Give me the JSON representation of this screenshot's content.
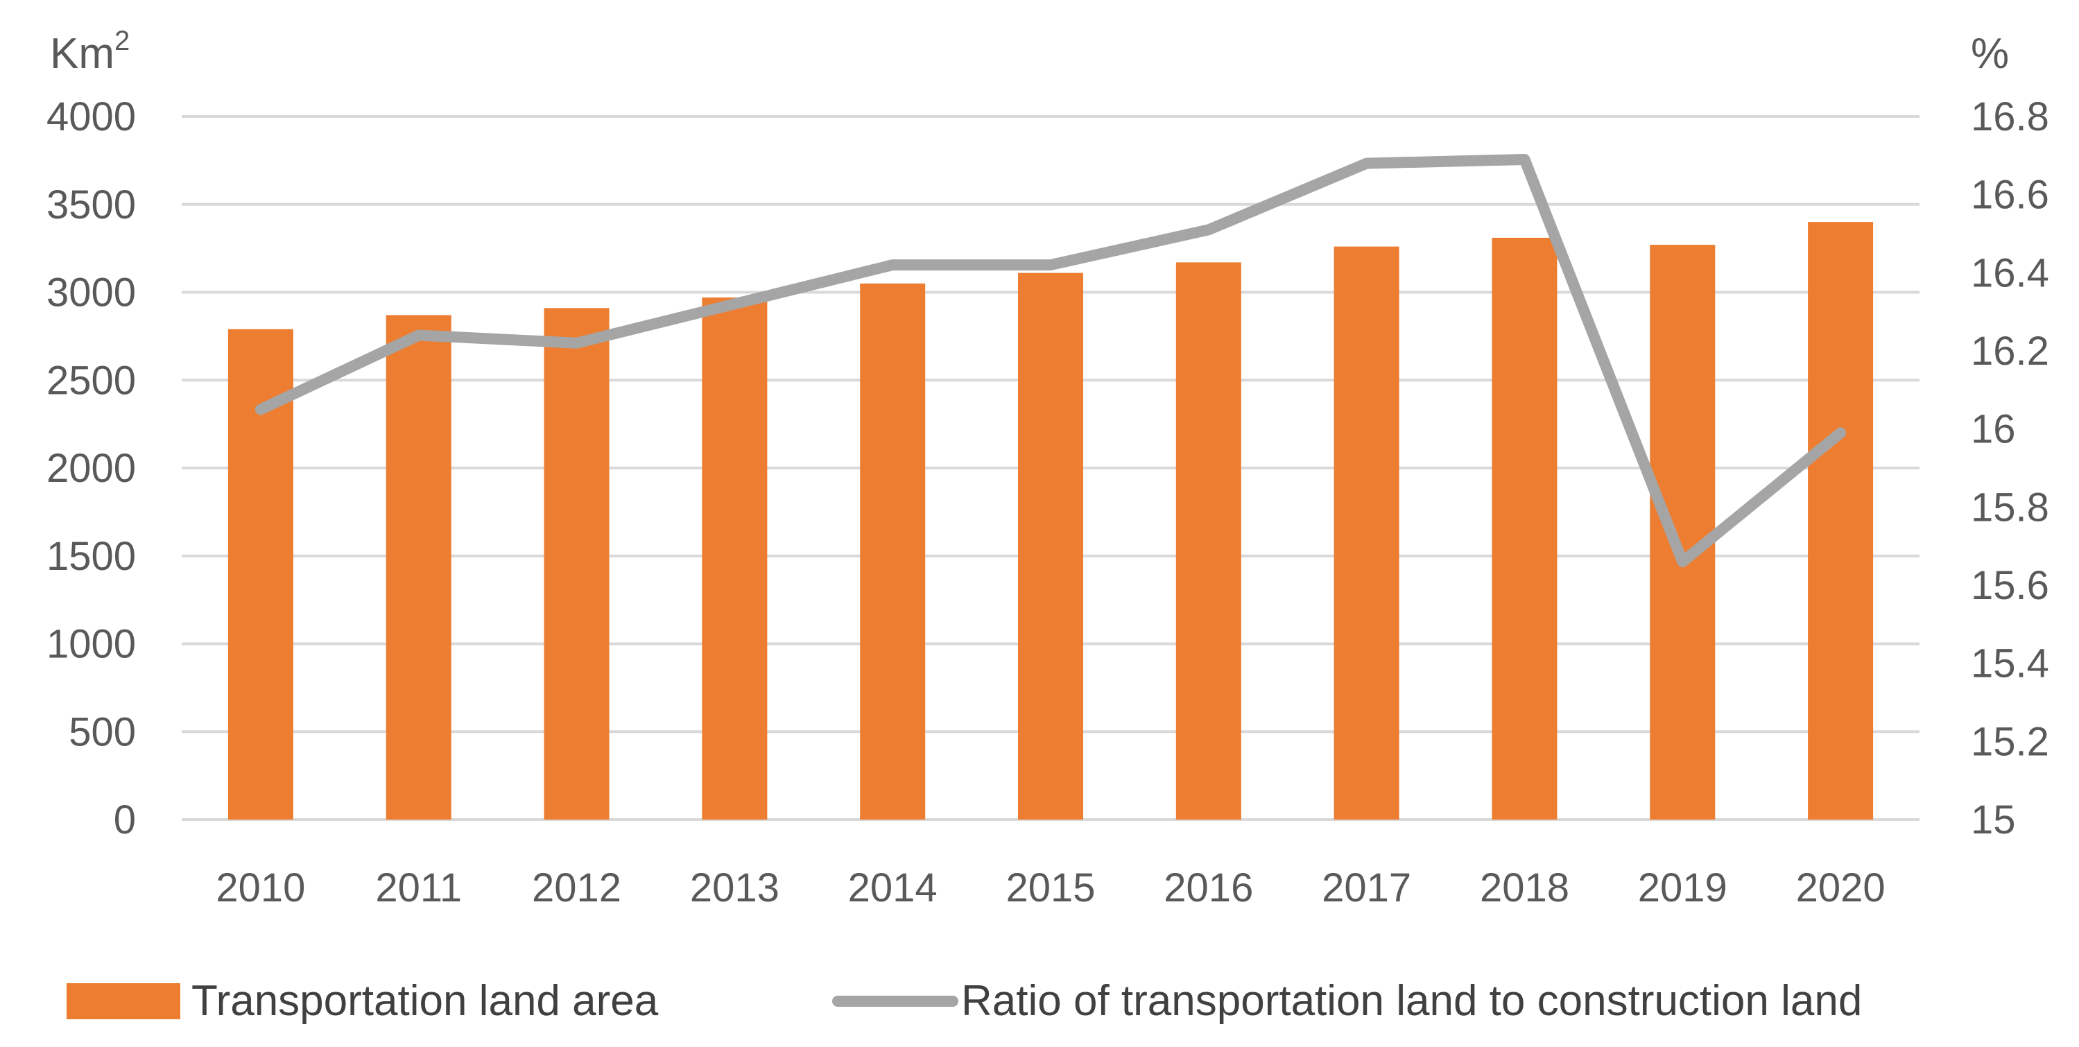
{
  "chart_data": {
    "type": "bar+line",
    "categories": [
      "2010",
      "2011",
      "2012",
      "2013",
      "2014",
      "2015",
      "2016",
      "2017",
      "2018",
      "2019",
      "2020"
    ],
    "series": [
      {
        "name": "Transportation land area",
        "type": "bar",
        "axis": "left",
        "color": "#ED7D31",
        "values": [
          2790,
          2870,
          2910,
          2970,
          3050,
          3110,
          3170,
          3260,
          3310,
          3270,
          3400
        ]
      },
      {
        "name": "Ratio of transportation land to construction land",
        "type": "line",
        "axis": "right",
        "color": "#A5A5A5",
        "values": [
          16.05,
          16.24,
          16.22,
          16.32,
          16.42,
          16.42,
          16.51,
          16.68,
          16.69,
          15.66,
          15.99
        ]
      }
    ],
    "left_axis": {
      "label_base": "Km",
      "label_sup": "2",
      "min": 0,
      "max": 4000,
      "step": 500,
      "ticks": [
        "0",
        "500",
        "1000",
        "1500",
        "2000",
        "2500",
        "3000",
        "3500",
        "4000"
      ]
    },
    "right_axis": {
      "label": "%",
      "min": 15,
      "max": 16.8,
      "step": 0.2,
      "ticks": [
        "15",
        "15.2",
        "15.4",
        "15.6",
        "15.8",
        "16",
        "16.2",
        "16.4",
        "16.6",
        "16.8"
      ]
    },
    "grid": true,
    "legend_position": "bottom"
  }
}
